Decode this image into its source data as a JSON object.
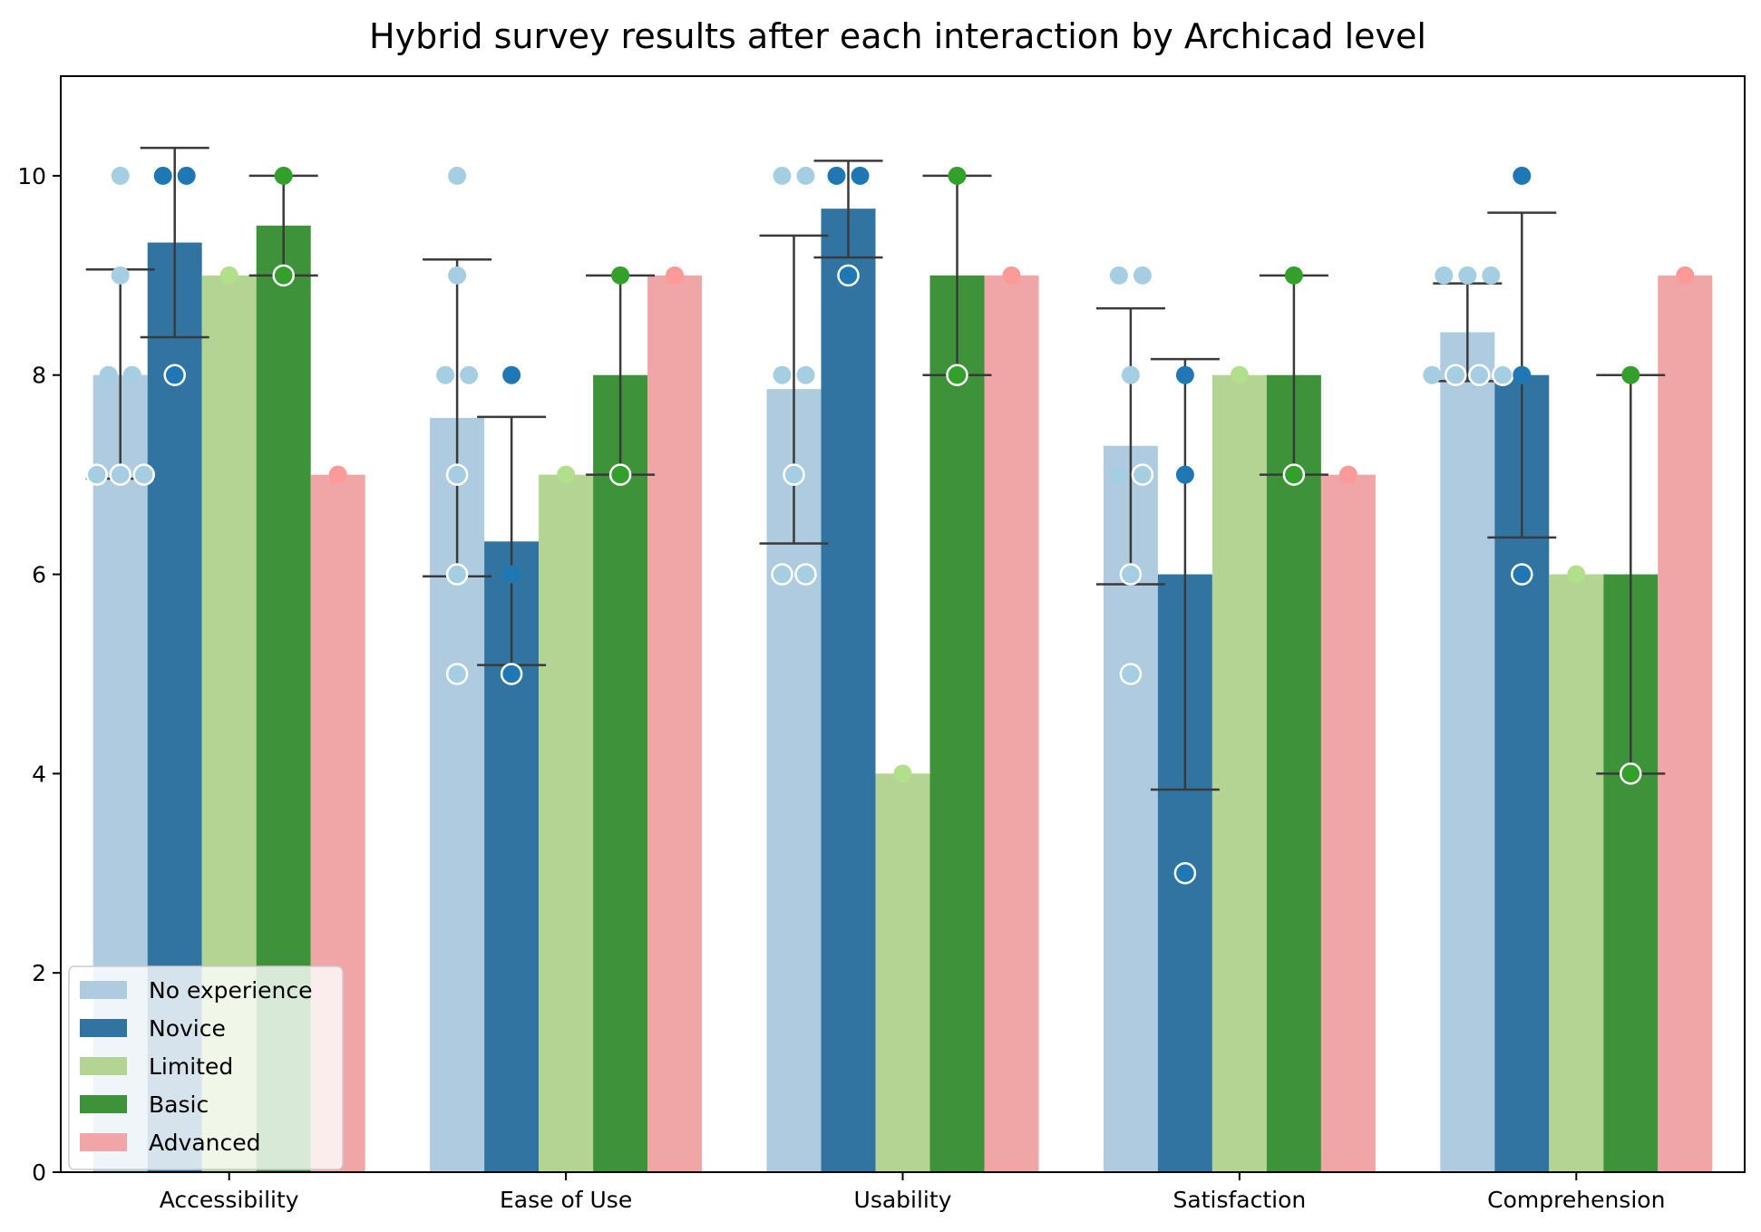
{
  "chart_data": {
    "type": "bar",
    "title": "Hybrid survey results after each interaction by Archicad level",
    "xlabel": "",
    "ylabel": "",
    "ylim": [
      0,
      11
    ],
    "yticks": [
      0,
      2,
      4,
      6,
      8,
      10
    ],
    "grid": false,
    "legend_position": "lower-left",
    "categories": [
      "Accessibility",
      "Ease of Use",
      "Usability",
      "Satisfaction",
      "Comprehension"
    ],
    "series": [
      {
        "name": "No experience",
        "color": "#aecbdf",
        "point_color": "#a6cee3",
        "values": [
          8.0,
          7.57,
          7.86,
          7.29,
          8.43
        ],
        "error": [
          [
            6.96,
            9.06
          ],
          [
            5.98,
            9.16
          ],
          [
            6.31,
            9.4
          ],
          [
            5.9,
            8.67
          ],
          [
            7.94,
            8.92
          ]
        ],
        "points": [
          [
            10,
            9,
            8,
            8,
            7,
            7,
            7
          ],
          [
            10,
            9,
            8,
            8,
            7,
            6,
            5
          ],
          [
            10,
            10,
            8,
            8,
            7,
            6,
            6
          ],
          [
            9,
            9,
            8,
            7,
            7,
            6,
            5
          ],
          [
            9,
            9,
            9,
            8,
            8,
            8,
            8
          ]
        ]
      },
      {
        "name": "Novice",
        "color": "#3274a1",
        "point_color": "#1f78b4",
        "values": [
          9.33,
          6.33,
          9.67,
          6.0,
          8.0
        ],
        "error": [
          [
            8.38,
            10.28
          ],
          [
            5.09,
            7.58
          ],
          [
            9.18,
            10.15
          ],
          [
            3.84,
            8.16
          ],
          [
            6.37,
            9.63
          ]
        ],
        "points": [
          [
            10,
            10,
            8
          ],
          [
            8,
            6,
            5
          ],
          [
            10,
            10,
            9
          ],
          [
            8,
            7,
            3
          ],
          [
            10,
            8,
            6
          ]
        ]
      },
      {
        "name": "Limited",
        "color": "#b4d493",
        "point_color": "#b2df8a",
        "values": [
          9,
          7,
          4,
          8,
          6
        ],
        "error": [
          null,
          null,
          null,
          null,
          null
        ],
        "points": [
          [
            9
          ],
          [
            7
          ],
          [
            4
          ],
          [
            8
          ],
          [
            6
          ]
        ]
      },
      {
        "name": "Basic",
        "color": "#3e923a",
        "point_color": "#33a02c",
        "values": [
          9.5,
          8.0,
          9.0,
          8.0,
          6.0
        ],
        "error": [
          [
            9,
            10
          ],
          [
            7,
            9
          ],
          [
            8,
            10
          ],
          [
            7,
            9
          ],
          [
            4,
            8
          ]
        ],
        "points": [
          [
            10,
            9
          ],
          [
            9,
            7
          ],
          [
            10,
            8
          ],
          [
            9,
            7
          ],
          [
            8,
            4
          ]
        ]
      },
      {
        "name": "Advanced",
        "color": "#f0a6a6",
        "point_color": "#fb9a99",
        "values": [
          7,
          9,
          9,
          7,
          9
        ],
        "error": [
          null,
          null,
          null,
          null,
          null
        ],
        "points": [
          [
            7
          ],
          [
            9
          ],
          [
            9
          ],
          [
            7
          ],
          [
            9
          ]
        ]
      }
    ]
  }
}
